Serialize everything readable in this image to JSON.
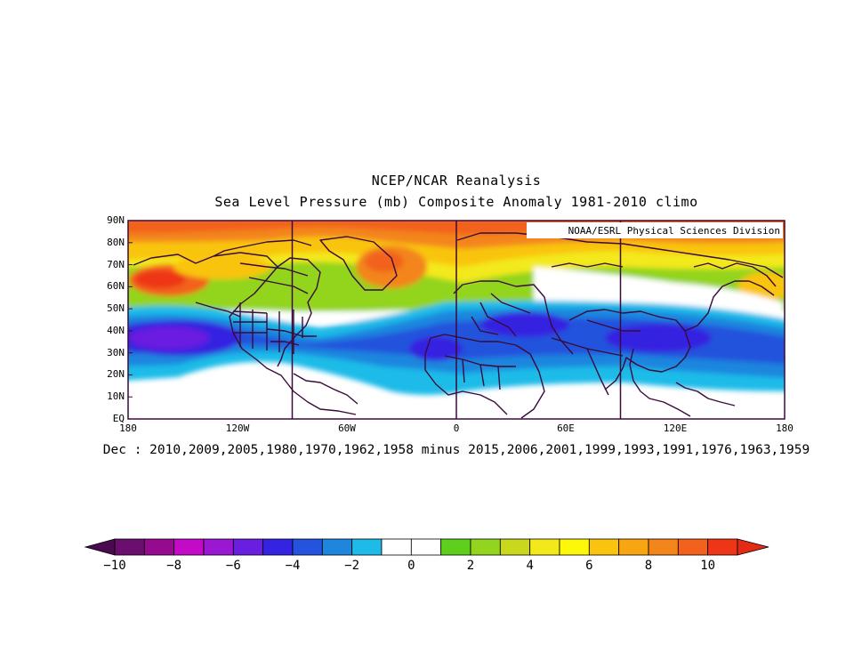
{
  "title": {
    "line1": "NCEP/NCAR Reanalysis",
    "line2": "Sea Level Pressure (mb) Composite Anomaly 1981-2010 climo"
  },
  "credit": "NOAA/ESRL Physical Sciences Division",
  "map": {
    "lat_range": [
      0,
      90
    ],
    "lon_range": [
      -180,
      180
    ],
    "lat_labels": [
      "90N",
      "80N",
      "70N",
      "60N",
      "50N",
      "40N",
      "30N",
      "20N",
      "10N",
      "EQ"
    ],
    "lon_labels": [
      "180",
      "120W",
      "60W",
      "0",
      "60E",
      "120E",
      "180"
    ],
    "meridian_lines": [
      -90,
      0,
      90
    ],
    "field": "sea level pressure anomaly",
    "units": "mb"
  },
  "composite_text": "Dec : 2010,2009,2005,1980,1970,1962,1958 minus 2015,2006,2001,1999,1993,1991,1976,1963,1959",
  "colorbar": {
    "labels": [
      "-10",
      "-8",
      "-6",
      "-4",
      "-2",
      "0",
      "2",
      "4",
      "6",
      "8",
      "10"
    ],
    "colors": [
      "#6a0f6e",
      "#950a8f",
      "#c30ac6",
      "#9b18d2",
      "#6a1ee0",
      "#3423e0",
      "#2453dd",
      "#1f86de",
      "#1fbbe8",
      "#ffffff",
      "#ffffff",
      "#5fcf1e",
      "#93d41e",
      "#c9d81c",
      "#f3e91a",
      "#fdf70a",
      "#f9c40d",
      "#f7a511",
      "#f3851a",
      "#f2621c",
      "#ee3518"
    ],
    "under_color": "#4a0a4e",
    "over_color": "#e42a14"
  }
}
